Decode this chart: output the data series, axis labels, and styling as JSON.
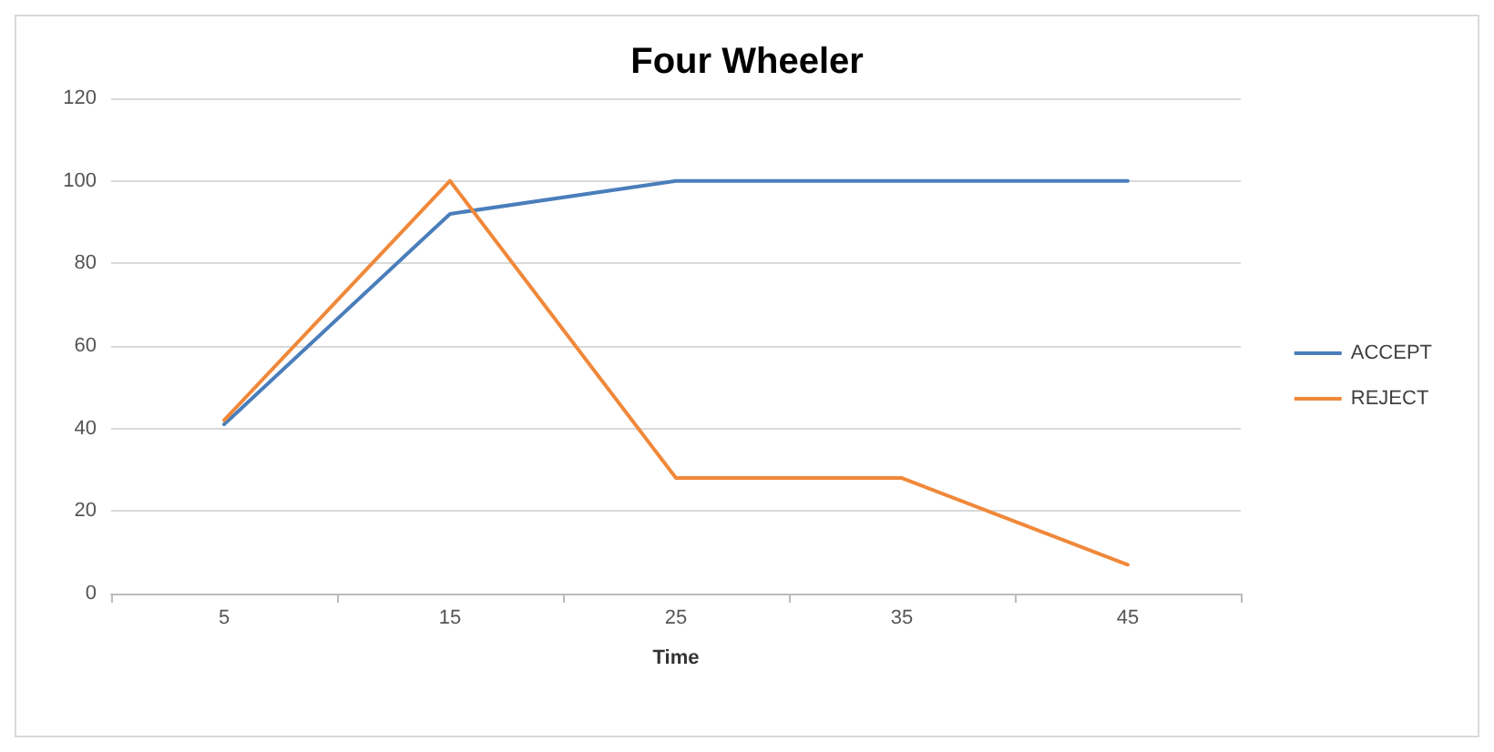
{
  "chart_data": {
    "type": "line",
    "title": "Four Wheeler",
    "xlabel": "Time",
    "categories": [
      "5",
      "15",
      "25",
      "35",
      "45"
    ],
    "series": [
      {
        "name": "ACCEPT",
        "color": "#4a7ebb",
        "values": [
          41,
          92,
          100,
          100,
          100
        ]
      },
      {
        "name": "REJECT",
        "color": "#f0883a",
        "values": [
          42,
          100,
          28,
          28,
          7
        ]
      }
    ],
    "ylim": [
      0,
      120
    ],
    "yticks": [
      0,
      20,
      40,
      60,
      80,
      100,
      120
    ],
    "grid": "y",
    "legend": "right",
    "marker": "none"
  }
}
